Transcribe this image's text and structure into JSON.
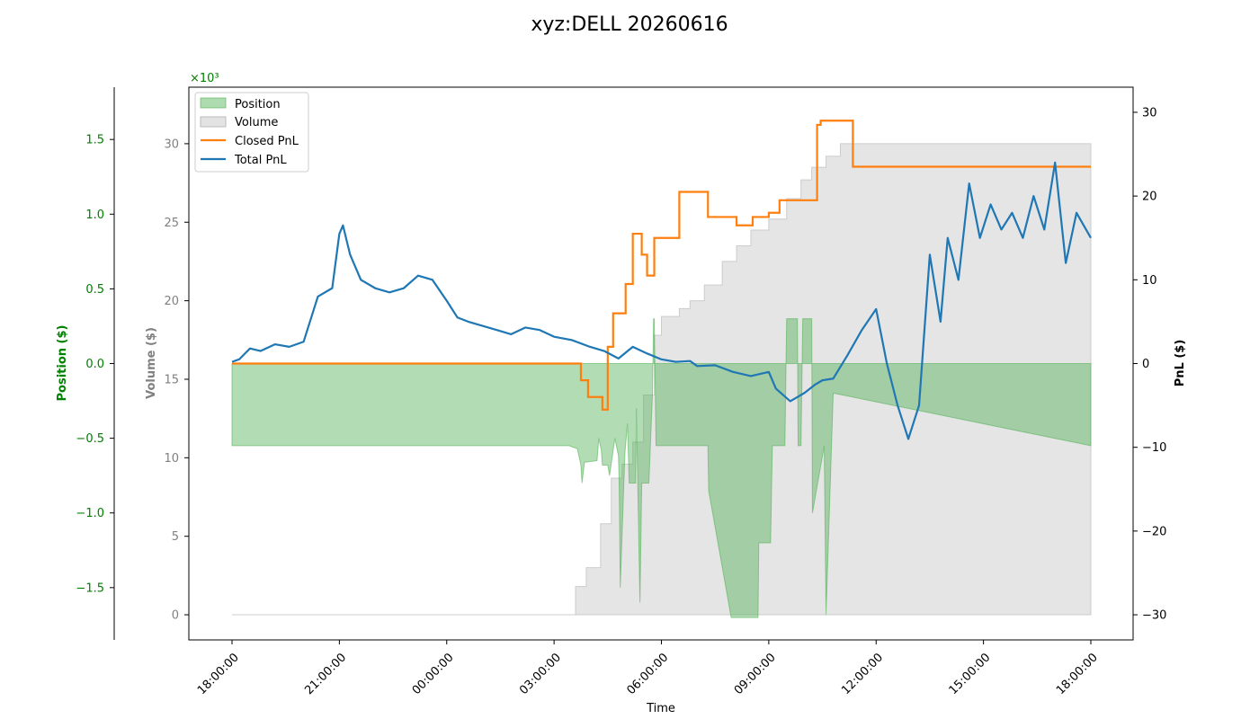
{
  "chart_data": {
    "type": "line",
    "title": "xyz:DELL 20260616",
    "xlabel": "Time",
    "x_ticks": [
      "18:00:00",
      "21:00:00",
      "00:00:00",
      "03:00:00",
      "06:00:00",
      "09:00:00",
      "12:00:00",
      "15:00:00",
      "18:00:00"
    ],
    "axes": {
      "position": {
        "label": "Position ($)",
        "multiplier": "×10³",
        "range": [
          -1.85,
          1.85
        ],
        "ticks": [
          -1.5,
          -1.0,
          -0.5,
          0.0,
          0.5,
          1.0,
          1.5
        ],
        "tick_labels": [
          "−1.5",
          "−1.0",
          "−0.5",
          "0.0",
          "0.5",
          "1.0",
          "1.5"
        ],
        "color": "#008000"
      },
      "volume": {
        "label": "Volume ($)",
        "range": [
          -1.6,
          33.6
        ],
        "ticks": [
          0,
          5,
          10,
          15,
          20,
          25,
          30
        ],
        "tick_labels": [
          "0",
          "5",
          "10",
          "15",
          "20",
          "25",
          "30"
        ],
        "color": "#808080"
      },
      "pnl": {
        "label": "PnL ($)",
        "range": [
          -33,
          33
        ],
        "ticks": [
          -30,
          -20,
          -10,
          0,
          10,
          20,
          30
        ],
        "tick_labels": [
          "−30",
          "−20",
          "−10",
          "0",
          "10",
          "20",
          "30"
        ],
        "color": "#000000"
      }
    },
    "legend": {
      "location": "upper left",
      "entries": [
        "Position",
        "Volume",
        "Closed PnL",
        "Total PnL"
      ]
    },
    "colors": {
      "position": "#4caf50",
      "volume": "#cccccc",
      "closed_pnl": "#ff7f0e",
      "total_pnl": "#1f77b4"
    },
    "series": [
      {
        "name": "Position",
        "axis": "position",
        "kind": "area",
        "x_hours": [
          0,
          9.4,
          9.42,
          9.65,
          9.75,
          9.78,
          9.85,
          9.88,
          10.2,
          10.25,
          10.32,
          10.35,
          10.5,
          10.55,
          10.7,
          10.8,
          10.82,
          10.85,
          10.95,
          10.98,
          11.05,
          11.1,
          11.28,
          11.3,
          11.4,
          11.45,
          11.65,
          11.7,
          11.75,
          11.78,
          11.8,
          11.85,
          11.95,
          12.75,
          12.8,
          13.3,
          13.32,
          13.95,
          13.98,
          14.7,
          14.72,
          15.05,
          15.1,
          15.45,
          15.5,
          15.8,
          15.82,
          15.9,
          15.95,
          16.2,
          16.22,
          16.55,
          16.6,
          16.8,
          16.85,
          24
        ],
        "y": [
          -0.55,
          -0.55,
          -0.55,
          -0.57,
          -0.68,
          -0.8,
          -0.66,
          -0.66,
          -0.65,
          -0.5,
          -0.58,
          -0.68,
          -0.68,
          -0.75,
          -0.5,
          -0.62,
          -0.8,
          -1.5,
          -0.8,
          -0.6,
          -0.4,
          -0.8,
          -0.8,
          -0.3,
          -1.6,
          -0.8,
          -0.8,
          -0.5,
          -0.2,
          0.3,
          0.3,
          -0.55,
          -0.55,
          -0.55,
          -0.55,
          -0.55,
          -0.85,
          -1.7,
          -1.7,
          -1.7,
          -1.2,
          -1.2,
          -0.55,
          -0.55,
          0.3,
          0.3,
          -0.55,
          -0.55,
          0.3,
          0.3,
          -1.0,
          -0.55,
          -1.68,
          -0.2,
          -0.2,
          -0.55
        ]
      },
      {
        "name": "Volume",
        "axis": "volume",
        "kind": "area",
        "x_hours": [
          0,
          9.4,
          9.6,
          9.9,
          10.3,
          10.6,
          10.9,
          11.2,
          11.5,
          11.8,
          12.0,
          12.5,
          12.8,
          13.2,
          13.7,
          14.1,
          14.5,
          15.0,
          15.5,
          15.9,
          16.2,
          16.6,
          17.0,
          24
        ],
        "y": [
          0,
          0,
          1.8,
          3.0,
          5.8,
          8.7,
          9.6,
          11.0,
          14.0,
          17.8,
          19.0,
          19.5,
          20.0,
          21.0,
          22.5,
          23.5,
          24.5,
          25.2,
          26.5,
          27.7,
          28.5,
          29.2,
          30.0,
          30.0
        ]
      },
      {
        "name": "Closed PnL",
        "axis": "pnl",
        "kind": "step",
        "x_hours": [
          0,
          9.75,
          9.95,
          10.35,
          10.5,
          10.65,
          11.0,
          11.2,
          11.45,
          11.6,
          11.8,
          12.5,
          12.75,
          13.3,
          14.1,
          14.55,
          15.0,
          15.3,
          15.9,
          16.35,
          16.45,
          17.35,
          18.0,
          24
        ],
        "y": [
          0,
          -2,
          -4,
          -5.5,
          2,
          6,
          9.5,
          15.5,
          13,
          10.5,
          15,
          20.5,
          20.5,
          17.5,
          16.5,
          17.5,
          18,
          19.5,
          19.5,
          28.5,
          29,
          23.5,
          23.5,
          23.5
        ]
      },
      {
        "name": "Total PnL",
        "axis": "pnl",
        "kind": "line",
        "x_hours": [
          0,
          0.2,
          0.5,
          0.8,
          1.2,
          1.6,
          2.0,
          2.4,
          2.8,
          3.0,
          3.1,
          3.3,
          3.6,
          4.0,
          4.4,
          4.8,
          5.2,
          5.6,
          6.0,
          6.3,
          6.6,
          7.0,
          7.4,
          7.8,
          8.2,
          8.6,
          9.0,
          9.5,
          10.0,
          10.4,
          10.8,
          11.2,
          11.6,
          12.0,
          12.4,
          12.8,
          13.0,
          13.5,
          14.0,
          14.5,
          15.0,
          15.2,
          15.6,
          16.0,
          16.3,
          16.5,
          16.8,
          17.2,
          17.6,
          18.0,
          18.3,
          18.6,
          18.9,
          19.2,
          19.5,
          19.8,
          20.0,
          20.3,
          20.6,
          20.9,
          21.2,
          21.5,
          21.8,
          22.1,
          22.4,
          22.7,
          23.0,
          23.3,
          23.6,
          24.0
        ],
        "y": [
          0.2,
          0.5,
          1.8,
          1.5,
          2.3,
          2.0,
          2.6,
          8.0,
          9.0,
          15.5,
          16.5,
          13.0,
          10.0,
          9.0,
          8.5,
          9.0,
          10.5,
          10.0,
          7.5,
          5.5,
          5.0,
          4.5,
          4.0,
          3.5,
          4.3,
          4.0,
          3.2,
          2.8,
          2.0,
          1.5,
          0.6,
          2.0,
          1.2,
          0.5,
          0.2,
          0.3,
          -0.3,
          -0.2,
          -1.0,
          -1.5,
          -1.0,
          -3.0,
          -4.5,
          -3.5,
          -2.5,
          -2.0,
          -1.8,
          1.0,
          4.0,
          6.5,
          0.0,
          -5.0,
          -9.0,
          -5.0,
          13.0,
          5.0,
          15.0,
          10.0,
          21.5,
          15.0,
          19.0,
          16.0,
          18.0,
          15.0,
          20.0,
          16.0,
          24.0,
          12.0,
          18.0,
          15.0
        ]
      }
    ]
  }
}
